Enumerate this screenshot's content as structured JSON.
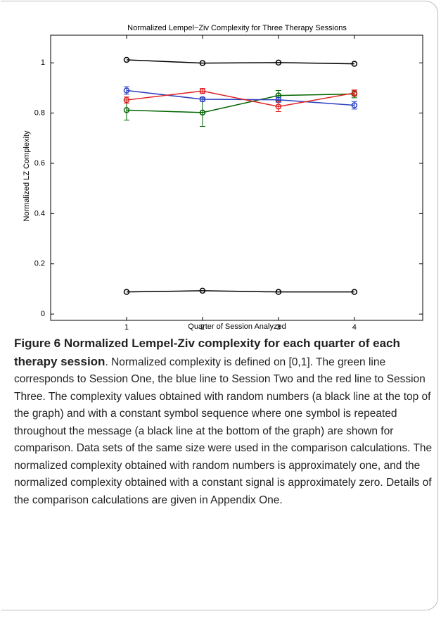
{
  "chart_data": {
    "type": "line",
    "title": "Normalized Lempel−Ziv Complexity for Three Therapy Sessions",
    "xlabel": "Quarter of Session Analyzed",
    "ylabel": "Normalized LZ Complexity",
    "x": [
      1,
      2,
      3,
      4
    ],
    "xlim": [
      0,
      4.9
    ],
    "xticks": [
      1,
      2,
      3,
      4
    ],
    "ylim": [
      -0.025,
      1.11
    ],
    "yticks": [
      0,
      0.2,
      0.4,
      0.6,
      0.8,
      1
    ],
    "series": [
      {
        "color": "#000000",
        "values": [
          1.012,
          0.999,
          1.001,
          0.996
        ]
      },
      {
        "color": "#000000",
        "values": [
          0.088,
          0.093,
          0.088,
          0.088
        ]
      },
      {
        "color": "#006400",
        "values": [
          0.812,
          0.802,
          0.87,
          0.876
        ],
        "errors": [
          0.04,
          0.055,
          0.02,
          0.015
        ]
      },
      {
        "color": "#2b3fbf",
        "values": [
          0.89,
          0.855,
          0.853,
          0.831
        ],
        "errors": [
          0.015,
          0.008,
          0.01,
          0.015
        ]
      },
      {
        "color": "#e02020",
        "values": [
          0.852,
          0.888,
          0.826,
          0.88
        ],
        "errors": [
          0.012,
          0.01,
          0.02,
          0.012
        ]
      }
    ]
  },
  "caption": {
    "title": "Figure 6 Normalized Lempel-Ziv complexity for each quarter of each therapy session",
    "text": ". Normalized complexity is defined on [0,1]. The green line corresponds to Session One, the blue line to Session Two and the red line to Session Three. The complexity values obtained with random numbers (a black line at the top of the graph) and with a constant symbol sequence where one symbol is repeated throughout the message (a black line at the bottom of the graph) are shown for comparison. Data sets of the same size were used in the comparison calculations. The normalized complexity obtained with random numbers is approximately one, and the normalized complexity obtained with a constant signal is approximately zero. Details of the comparison calculations are given in Appendix One."
  }
}
